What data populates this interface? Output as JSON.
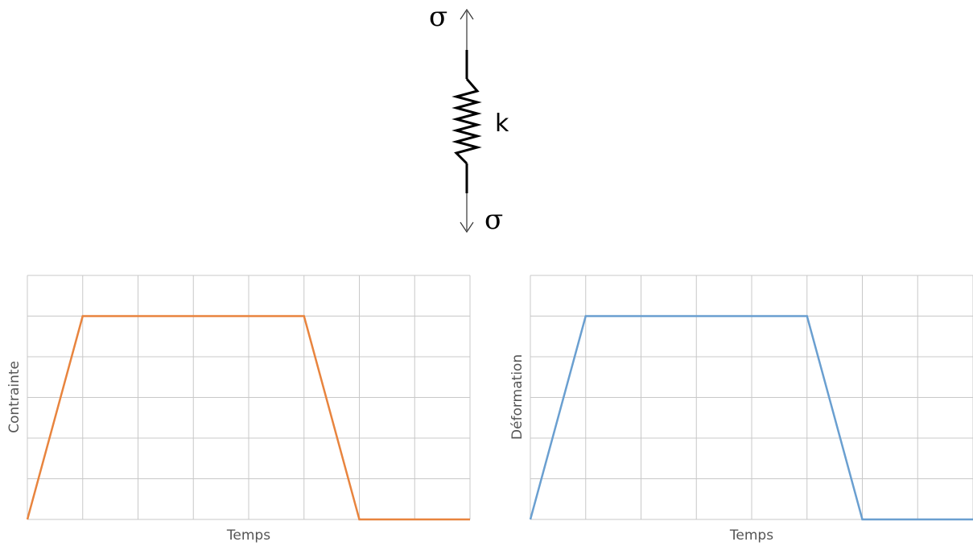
{
  "diagram": {
    "stress_top": "σ",
    "stress_bottom": "σ",
    "spring_label": "k"
  },
  "colors": {
    "grid": "#c8c8c8",
    "stress_line": "#e8843e",
    "strain_line": "#6a9fd0"
  },
  "chart_data": [
    {
      "type": "line",
      "xlabel": "Temps",
      "ylabel": "Contrainte",
      "xlim": [
        0,
        8
      ],
      "ylim": [
        0,
        6
      ],
      "grid": true,
      "series": [
        {
          "x": [
            0,
            1,
            5,
            6,
            8
          ],
          "y": [
            0,
            5,
            5,
            0,
            0
          ]
        }
      ]
    },
    {
      "type": "line",
      "xlabel": "Temps",
      "ylabel": "Déformation",
      "xlim": [
        0,
        8
      ],
      "ylim": [
        0,
        6
      ],
      "grid": true,
      "series": [
        {
          "x": [
            0,
            1,
            5,
            6,
            8
          ],
          "y": [
            0,
            5,
            5,
            0,
            0
          ]
        }
      ]
    }
  ]
}
